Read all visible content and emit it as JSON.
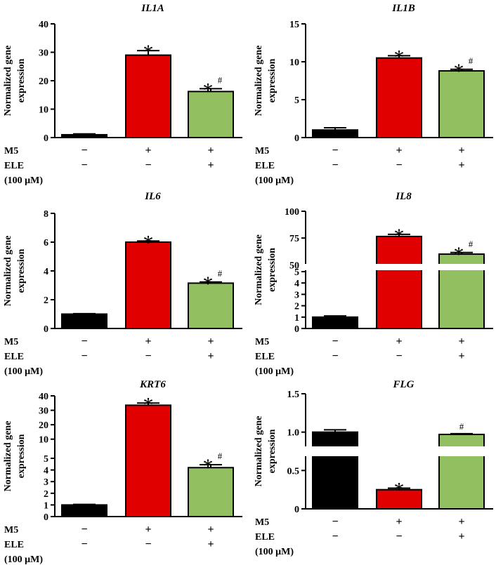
{
  "chart_data": [
    {
      "type": "bar",
      "title": "IL1A",
      "ylabel": [
        "Normalized gene",
        "expression"
      ],
      "ylim": [
        0,
        40
      ],
      "yticks": [
        "0",
        "10",
        "20",
        "30",
        "40"
      ],
      "categories": [
        "M5 − / ELE −",
        "M5 + / ELE −",
        "M5 + / ELE +"
      ],
      "values": [
        1.0,
        29.0,
        16.2
      ],
      "errors": [
        0.3,
        1.6,
        1.0
      ],
      "bar_colors": [
        "#000000",
        "#e00000",
        "#92c060"
      ],
      "annotations": [
        [
          "",
          ""
        ],
        [
          "*",
          ""
        ],
        [
          "*",
          "#"
        ]
      ],
      "axis_break": null
    },
    {
      "type": "bar",
      "title": "IL1B",
      "ylabel": [
        "Normalized gene",
        "expression"
      ],
      "ylim": [
        0,
        15
      ],
      "yticks": [
        "0",
        "5",
        "10",
        "15"
      ],
      "categories": [
        "M5 − / ELE −",
        "M5 + / ELE −",
        "M5 + / ELE +"
      ],
      "values": [
        1.0,
        10.5,
        8.8
      ],
      "errors": [
        0.3,
        0.3,
        0.2
      ],
      "bar_colors": [
        "#000000",
        "#e00000",
        "#92c060"
      ],
      "annotations": [
        [
          "",
          ""
        ],
        [
          "*",
          ""
        ],
        [
          "*",
          "#"
        ]
      ],
      "axis_break": null
    },
    {
      "type": "bar",
      "title": "IL6",
      "ylabel": [
        "Normalized gene",
        "expression"
      ],
      "ylim": [
        0,
        8
      ],
      "yticks": [
        "0",
        "2",
        "4",
        "6",
        "8"
      ],
      "categories": [
        "M5 − / ELE −",
        "M5 + / ELE −",
        "M5 + / ELE +"
      ],
      "values": [
        1.0,
        6.0,
        3.15
      ],
      "errors": [
        0.03,
        0.08,
        0.08
      ],
      "bar_colors": [
        "#000000",
        "#e00000",
        "#92c060"
      ],
      "annotations": [
        [
          "",
          ""
        ],
        [
          "*",
          ""
        ],
        [
          "*",
          "#"
        ]
      ],
      "axis_break": null
    },
    {
      "type": "bar",
      "title": "IL8",
      "ylabel": [
        "Normalized gene",
        "expression"
      ],
      "ylim": [
        0,
        100
      ],
      "yticks": [
        "0",
        "1",
        "2",
        "3",
        "4",
        "5",
        "50",
        "75",
        "100"
      ],
      "categories": [
        "M5 − / ELE −",
        "M5 + / ELE −",
        "M5 + / ELE +"
      ],
      "values": [
        1.0,
        76.5,
        60.0
      ],
      "errors": [
        0.1,
        2.0,
        1.5
      ],
      "bar_colors": [
        "#000000",
        "#e00000",
        "#92c060"
      ],
      "annotations": [
        [
          "",
          ""
        ],
        [
          "*",
          ""
        ],
        [
          "*",
          "#"
        ]
      ],
      "axis_break": {
        "lower": [
          0,
          5
        ],
        "upper": [
          45,
          100
        ]
      }
    },
    {
      "type": "bar",
      "title": "KRT6",
      "ylabel": [
        "Normalized gene",
        "expression"
      ],
      "ylim": [
        0,
        40
      ],
      "yticks": [
        "0",
        "1",
        "2",
        "3",
        "4",
        "5",
        "10",
        "20",
        "30",
        "40"
      ],
      "categories": [
        "M5 − / ELE −",
        "M5 + / ELE −",
        "M5 + / ELE +"
      ],
      "values": [
        1.0,
        33.5,
        4.2
      ],
      "errors": [
        0.05,
        1.5,
        0.25
      ],
      "bar_colors": [
        "#000000",
        "#e00000",
        "#92c060"
      ],
      "annotations": [
        [
          "",
          ""
        ],
        [
          "*",
          ""
        ],
        [
          "*",
          "#"
        ]
      ],
      "axis_break": {
        "lower": [
          0,
          5
        ],
        "upper": [
          5,
          40
        ]
      }
    },
    {
      "type": "bar",
      "title": "FLG",
      "ylabel": [
        "Normalized gene",
        "expression"
      ],
      "ylim": [
        0,
        1.5
      ],
      "yticks": [
        "0",
        "0.5",
        "1.0",
        "1.5"
      ],
      "categories": [
        "M5 − / ELE −",
        "M5 + / ELE −",
        "M5 + / ELE +"
      ],
      "values": [
        1.0,
        0.25,
        0.97
      ],
      "errors": [
        0.03,
        0.02,
        0.01
      ],
      "bar_colors": [
        "#000000",
        "#e00000",
        "#92c060"
      ],
      "annotations": [
        [
          "",
          ""
        ],
        [
          "*",
          ""
        ],
        [
          "",
          "#"
        ]
      ],
      "axis_break": null
    }
  ],
  "treatment_labels": {
    "m5": "M5",
    "ele": "ELE",
    "conc": "(100 μM)",
    "m5_signs": [
      "−",
      "+",
      "+"
    ],
    "ele_signs": [
      "−",
      "−",
      "+"
    ]
  }
}
